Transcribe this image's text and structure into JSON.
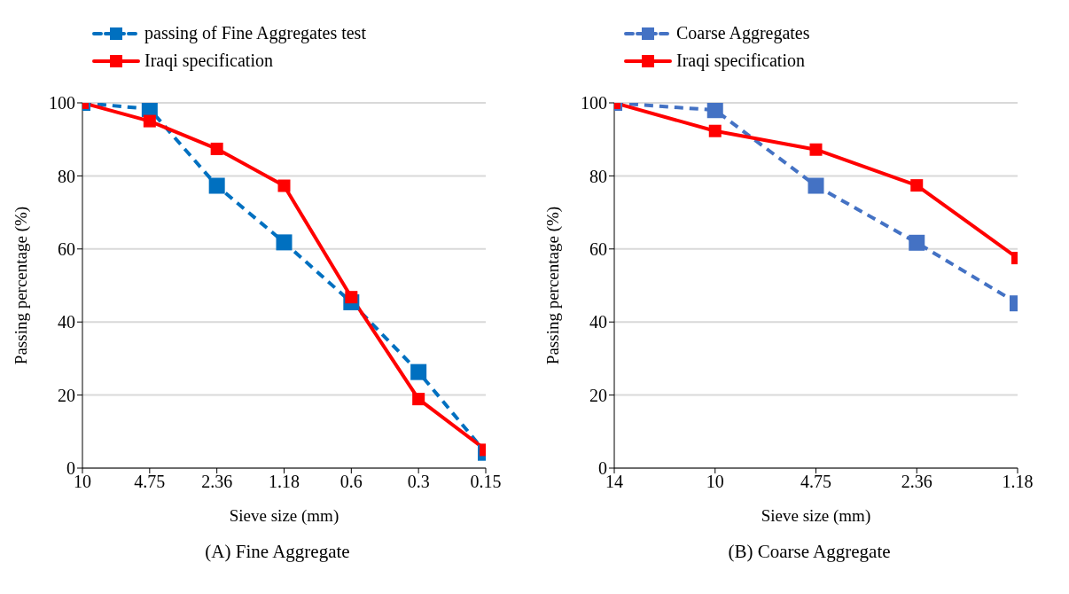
{
  "chart_data": [
    {
      "type": "line",
      "categories": [
        "10",
        "4.75",
        "2.36",
        "1.18",
        "0.6",
        "0.3",
        "0.15"
      ],
      "xlabel": "Sieve size (mm)",
      "ylabel": "Passing percentage (%)",
      "ylim": [
        0,
        100
      ],
      "yticks": [
        0,
        20,
        40,
        60,
        80,
        100
      ],
      "grid": "y",
      "legend": "top",
      "marker": "square",
      "annotations": [
        "(A)  Fine Aggregate"
      ],
      "series": [
        {
          "name": "passing of Fine Aggregates test",
          "color": "#0070c0",
          "line_style": "dashed",
          "values": [
            100,
            98.3,
            77.3,
            61.8,
            45.4,
            26.3,
            4.2
          ]
        },
        {
          "name": "Iraqi specification",
          "color": "#ff0000",
          "line_style": "solid",
          "values": [
            100,
            95,
            87.4,
            77.3,
            46.8,
            18.9,
            5
          ]
        }
      ]
    },
    {
      "type": "line",
      "categories": [
        "14",
        "10",
        "4.75",
        "2.36",
        "1.18"
      ],
      "xlabel": "Sieve size (mm)",
      "ylabel": "Passing percentage (%)",
      "ylim": [
        0,
        100
      ],
      "yticks": [
        0,
        20,
        40,
        60,
        80,
        100
      ],
      "grid": "y",
      "legend": "top",
      "marker": "square",
      "annotations": [
        "(B)  Coarse Aggregate"
      ],
      "series": [
        {
          "name": "Coarse Aggregates",
          "color": "#4472c4",
          "line_style": "dashed",
          "values": [
            100,
            98,
            77.3,
            61.7,
            45.1
          ]
        },
        {
          "name": "Iraqi specification",
          "color": "#ff0000",
          "line_style": "solid",
          "values": [
            100,
            92.3,
            87.2,
            77.4,
            57.5
          ]
        }
      ]
    }
  ]
}
